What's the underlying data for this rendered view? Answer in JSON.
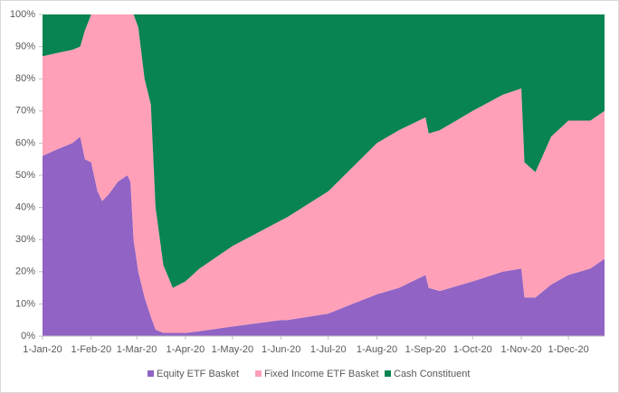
{
  "chart_data": {
    "type": "stacked-area",
    "x": [
      "2020-01-01",
      "2020-01-10",
      "2020-01-20",
      "2020-01-25",
      "2020-01-28",
      "2020-02-01",
      "2020-02-05",
      "2020-02-08",
      "2020-02-12",
      "2020-02-18",
      "2020-02-24",
      "2020-02-26",
      "2020-02-28",
      "2020-03-02",
      "2020-03-06",
      "2020-03-10",
      "2020-03-13",
      "2020-03-18",
      "2020-03-24",
      "2020-04-01",
      "2020-04-10",
      "2020-05-01",
      "2020-06-01",
      "2020-06-05",
      "2020-07-01",
      "2020-08-01",
      "2020-08-15",
      "2020-09-01",
      "2020-09-03",
      "2020-09-10",
      "2020-10-01",
      "2020-10-20",
      "2020-11-01",
      "2020-11-03",
      "2020-11-10",
      "2020-11-20",
      "2020-12-01",
      "2020-12-15",
      "2020-12-24"
    ],
    "series": [
      {
        "name": "Equity ETF Basket",
        "color": "#9063c4",
        "values": [
          56,
          58,
          60,
          62,
          55,
          54,
          45,
          42,
          44,
          48,
          50,
          48,
          30,
          20,
          12,
          6,
          2,
          1,
          1,
          1,
          1.5,
          3,
          5,
          5,
          7,
          13,
          15,
          19,
          15,
          14,
          17,
          20,
          21,
          12,
          12,
          16,
          19,
          21,
          24
        ]
      },
      {
        "name": "Fixed Income ETF Basket",
        "color": "#ffa0b8",
        "values": [
          31,
          30,
          29,
          28,
          40,
          46,
          55,
          58,
          56,
          52,
          50,
          52,
          70,
          76,
          68,
          66,
          38,
          21,
          14,
          16,
          19.5,
          25,
          31,
          32,
          38,
          47,
          49,
          49,
          48,
          50,
          53,
          55,
          56,
          42,
          39,
          46,
          48,
          46,
          46
        ]
      },
      {
        "name": "Cash Constituent",
        "color": "#078451",
        "values": [
          13,
          12,
          11,
          10,
          5,
          0,
          0,
          0,
          0,
          0,
          0,
          0,
          0,
          4,
          20,
          28,
          60,
          78,
          85,
          83,
          79,
          72,
          64,
          63,
          55,
          40,
          36,
          32,
          37,
          36,
          30,
          25,
          23,
          46,
          49,
          38,
          33,
          33,
          30
        ]
      }
    ],
    "xlim": [
      "2020-01-01",
      "2020-12-24"
    ],
    "xticks": [
      {
        "value": "2020-01-01",
        "label": "1-Jan-20"
      },
      {
        "value": "2020-02-01",
        "label": "1-Feb-20"
      },
      {
        "value": "2020-03-01",
        "label": "1-Mar-20"
      },
      {
        "value": "2020-04-01",
        "label": "1-Apr-20"
      },
      {
        "value": "2020-05-01",
        "label": "1-May-20"
      },
      {
        "value": "2020-06-01",
        "label": "1-Jun-20"
      },
      {
        "value": "2020-07-01",
        "label": "1-Jul-20"
      },
      {
        "value": "2020-08-01",
        "label": "1-Aug-20"
      },
      {
        "value": "2020-09-01",
        "label": "1-Sep-20"
      },
      {
        "value": "2020-10-01",
        "label": "1-Oct-20"
      },
      {
        "value": "2020-11-01",
        "label": "1-Nov-20"
      },
      {
        "value": "2020-12-01",
        "label": "1-Dec-20"
      }
    ],
    "ylim": [
      0,
      100
    ],
    "yticks": [
      {
        "value": 0,
        "label": "0%"
      },
      {
        "value": 10,
        "label": "10%"
      },
      {
        "value": 20,
        "label": "20%"
      },
      {
        "value": 30,
        "label": "30%"
      },
      {
        "value": 40,
        "label": "40%"
      },
      {
        "value": 50,
        "label": "50%"
      },
      {
        "value": 60,
        "label": "60%"
      },
      {
        "value": 70,
        "label": "70%"
      },
      {
        "value": 80,
        "label": "80%"
      },
      {
        "value": 90,
        "label": "90%"
      },
      {
        "value": 100,
        "label": "100%"
      }
    ],
    "legend": "bottom"
  }
}
